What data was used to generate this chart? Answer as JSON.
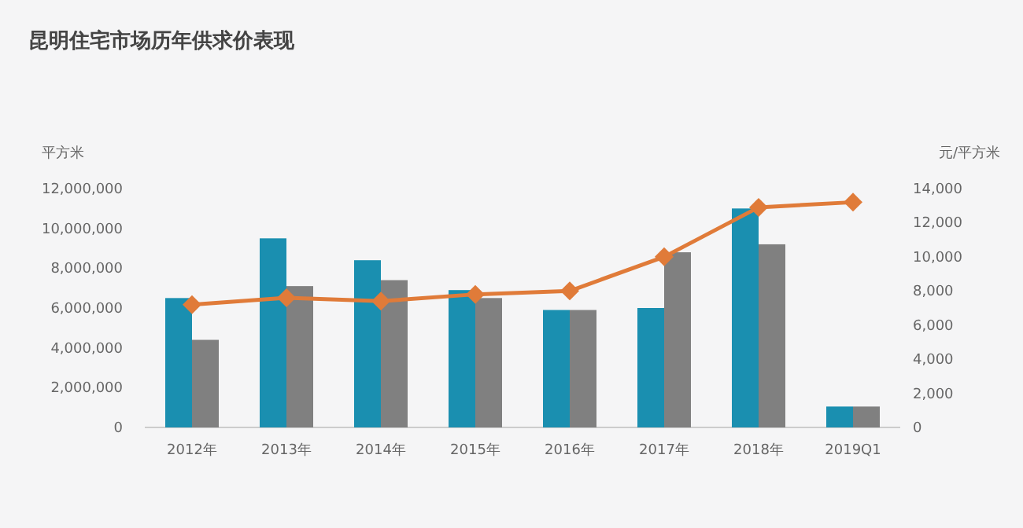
{
  "chart_data": {
    "type": "bar",
    "title": "昆明住宅市场历年供求价表现",
    "ylabel": "平方米",
    "y2label": "元/平方米",
    "categories": [
      "2012年",
      "2013年",
      "2014年",
      "2015年",
      "2016年",
      "2017年",
      "2018年",
      "2019Q1"
    ],
    "series": [
      {
        "color": "#1a8fb0",
        "values": [
          6500000,
          9500000,
          8400000,
          6900000,
          5900000,
          6000000,
          11000000,
          1050000
        ]
      },
      {
        "color": "#808080",
        "values": [
          4400000,
          7100000,
          7400000,
          6500000,
          5900000,
          8800000,
          9200000,
          1050000
        ]
      },
      {
        "type": "line",
        "axis": "y2",
        "color": "#e07b39",
        "marker": "diamond",
        "values": [
          7200,
          7600,
          7400,
          7800,
          8000,
          10000,
          12900,
          13200
        ]
      }
    ],
    "ylim": [
      0,
      12000000
    ],
    "yticks": [
      0,
      {
        "value": 2000000,
        "label": "2,000,000"
      },
      {
        "value": 4000000,
        "label": "4,000,000"
      },
      {
        "value": 6000000,
        "label": "6,000,000"
      },
      {
        "value": 8000000,
        "label": "8,000,000"
      },
      {
        "value": 10000000,
        "label": "10,000,000"
      },
      {
        "value": 12000000,
        "label": "12,000,000"
      }
    ],
    "y2lim": [
      0,
      14000
    ],
    "y2ticks": [
      0,
      {
        "value": 2000,
        "label": "2,000"
      },
      {
        "value": 4000,
        "label": "4,000"
      },
      {
        "value": 6000,
        "label": "6,000"
      },
      {
        "value": 8000,
        "label": "8,000"
      },
      {
        "value": 10000,
        "label": "10,000"
      },
      {
        "value": 12000,
        "label": "12,000"
      },
      {
        "value": 14000,
        "label": "14,000"
      }
    ],
    "grid": false
  }
}
